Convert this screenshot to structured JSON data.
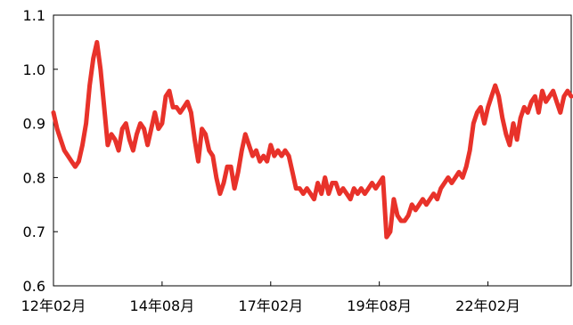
{
  "chart_data": {
    "type": "line",
    "title": "",
    "xlabel": "",
    "ylabel": "",
    "ylim": [
      0.6,
      1.1
    ],
    "y_ticks": [
      "0.6",
      "0.7",
      "0.8",
      "0.9",
      "1.0",
      "1.1"
    ],
    "x_tick_labels": [
      "12年02月",
      "14年08月",
      "17年02月",
      "19年08月",
      "22年02月"
    ],
    "x_tick_index": [
      0,
      30,
      60,
      90,
      120
    ],
    "grid": false,
    "legend": "none",
    "line_color": "#e8322a",
    "series": [
      {
        "x_index": [
          0,
          1,
          2,
          3,
          4,
          5,
          6,
          7,
          8,
          9,
          10,
          11,
          12,
          13,
          14,
          15,
          16,
          17,
          18,
          19,
          20,
          21,
          22,
          23,
          24,
          25,
          26,
          27,
          28,
          29,
          30,
          31,
          32,
          33,
          34,
          35,
          36,
          37,
          38,
          39,
          40,
          41,
          42,
          43,
          44,
          45,
          46,
          47,
          48,
          49,
          50,
          51,
          52,
          53,
          54,
          55,
          56,
          57,
          58,
          59,
          60,
          61,
          62,
          63,
          64,
          65,
          66,
          67,
          68,
          69,
          70,
          71,
          72,
          73,
          74,
          75,
          76,
          77,
          78,
          79,
          80,
          81,
          82,
          83,
          84,
          85,
          86,
          87,
          88,
          89,
          90,
          91,
          92,
          93,
          94,
          95,
          96,
          97,
          98,
          99,
          100,
          101,
          102,
          103,
          104,
          105,
          106,
          107,
          108,
          109,
          110,
          111,
          112,
          113,
          114,
          115,
          116,
          117,
          118,
          119,
          120,
          121,
          122,
          123,
          124,
          125,
          126,
          127,
          128,
          129,
          130,
          131,
          132,
          133,
          134,
          135,
          136,
          137,
          138,
          139,
          140,
          141,
          142,
          143
        ],
        "values": [
          0.92,
          0.89,
          0.87,
          0.85,
          0.84,
          0.83,
          0.82,
          0.83,
          0.86,
          0.9,
          0.97,
          1.02,
          1.05,
          1.0,
          0.93,
          0.86,
          0.88,
          0.87,
          0.85,
          0.89,
          0.9,
          0.87,
          0.85,
          0.88,
          0.9,
          0.89,
          0.86,
          0.89,
          0.92,
          0.89,
          0.9,
          0.95,
          0.96,
          0.93,
          0.93,
          0.92,
          0.93,
          0.94,
          0.92,
          0.87,
          0.83,
          0.89,
          0.88,
          0.85,
          0.84,
          0.8,
          0.77,
          0.79,
          0.82,
          0.82,
          0.78,
          0.81,
          0.85,
          0.88,
          0.86,
          0.84,
          0.85,
          0.83,
          0.84,
          0.83,
          0.86,
          0.84,
          0.85,
          0.84,
          0.85,
          0.84,
          0.81,
          0.78,
          0.78,
          0.77,
          0.78,
          0.77,
          0.76,
          0.79,
          0.77,
          0.8,
          0.77,
          0.79,
          0.79,
          0.77,
          0.78,
          0.77,
          0.76,
          0.78,
          0.77,
          0.78,
          0.77,
          0.78,
          0.79,
          0.78,
          0.79,
          0.8,
          0.69,
          0.7,
          0.76,
          0.73,
          0.72,
          0.72,
          0.73,
          0.75,
          0.74,
          0.75,
          0.76,
          0.75,
          0.76,
          0.77,
          0.76,
          0.78,
          0.79,
          0.8,
          0.79,
          0.8,
          0.81,
          0.8,
          0.82,
          0.85,
          0.9,
          0.92,
          0.93,
          0.9,
          0.93,
          0.95,
          0.97,
          0.95,
          0.91,
          0.88,
          0.86,
          0.9,
          0.87,
          0.91,
          0.93,
          0.92,
          0.94,
          0.95,
          0.92,
          0.96,
          0.94,
          0.95,
          0.96,
          0.94,
          0.92,
          0.95,
          0.96,
          0.95
        ]
      }
    ]
  }
}
